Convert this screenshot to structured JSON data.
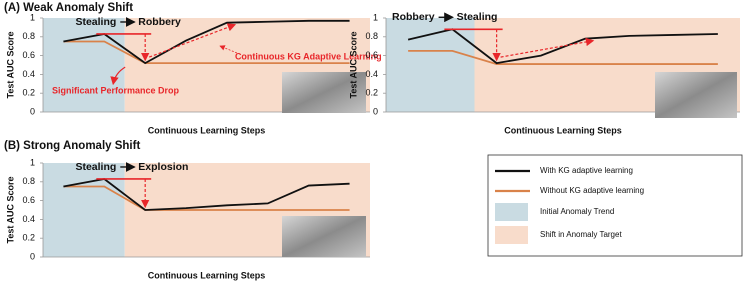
{
  "sections": [
    "(A) Weak Anomaly Shift",
    "(B) Strong Anomaly Shift"
  ],
  "chart_data": [
    {
      "type": "line",
      "categories": [
        null,
        null,
        null,
        null,
        null,
        null,
        null,
        null
      ],
      "xlabel": "Continuous Learning Steps",
      "ylabel": "Test AUC Score",
      "ylim": [
        0,
        1
      ],
      "yticks": [
        0,
        0.2,
        0.4,
        0.6,
        0.8,
        1
      ],
      "series": [
        {
          "name": "With KG adaptive learning",
          "color": "#111111",
          "values": [
            0.75,
            0.83,
            0.52,
            0.76,
            0.95,
            0.96,
            0.97,
            0.97
          ]
        },
        {
          "name": "Without KG adaptive learning",
          "color": "#d9824a",
          "values": [
            0.75,
            0.75,
            0.52,
            0.52,
            0.52,
            0.52,
            0.52,
            0.52
          ]
        }
      ],
      "regions": [
        {
          "name": "Initial Anomaly Trend",
          "color": "#c9dbe2"
        },
        {
          "name": "Shift in Anomaly Target",
          "color": "#f8dccb"
        }
      ],
      "shift_from": "Stealing",
      "shift_to": "Robbery",
      "annotations": [
        "Continuous KG Adaptive Learning",
        "Significant Performance Drop"
      ]
    },
    {
      "type": "line",
      "categories": [
        null,
        null,
        null,
        null,
        null,
        null,
        null,
        null
      ],
      "xlabel": "Continuous Learning Steps",
      "ylabel": "Test AUC Score",
      "ylim": [
        0,
        1
      ],
      "yticks": [
        0,
        0.2,
        0.4,
        0.6,
        0.8,
        1
      ],
      "series": [
        {
          "name": "With KG adaptive learning",
          "color": "#111111",
          "values": [
            0.77,
            0.88,
            0.52,
            0.6,
            0.78,
            0.81,
            0.82,
            0.83
          ]
        },
        {
          "name": "Without KG adaptive learning",
          "color": "#d9824a",
          "values": [
            0.65,
            0.65,
            0.51,
            0.51,
            0.51,
            0.51,
            0.51,
            0.51
          ]
        }
      ],
      "shift_from": "Robbery",
      "shift_to": "Stealing"
    },
    {
      "type": "line",
      "categories": [
        null,
        null,
        null,
        null,
        null,
        null,
        null,
        null
      ],
      "xlabel": "Continuous Learning Steps",
      "ylabel": "Test AUC Score",
      "ylim": [
        0,
        1
      ],
      "yticks": [
        0,
        0.2,
        0.4,
        0.6,
        0.8,
        1
      ],
      "series": [
        {
          "name": "With KG adaptive learning",
          "color": "#111111",
          "values": [
            0.75,
            0.83,
            0.5,
            0.52,
            0.55,
            0.57,
            0.76,
            0.78
          ]
        },
        {
          "name": "Without KG adaptive learning",
          "color": "#d9824a",
          "values": [
            0.75,
            0.75,
            0.5,
            0.5,
            0.5,
            0.5,
            0.5,
            0.5
          ]
        }
      ],
      "shift_from": "Stealing",
      "shift_to": "Explosion"
    }
  ]
}
